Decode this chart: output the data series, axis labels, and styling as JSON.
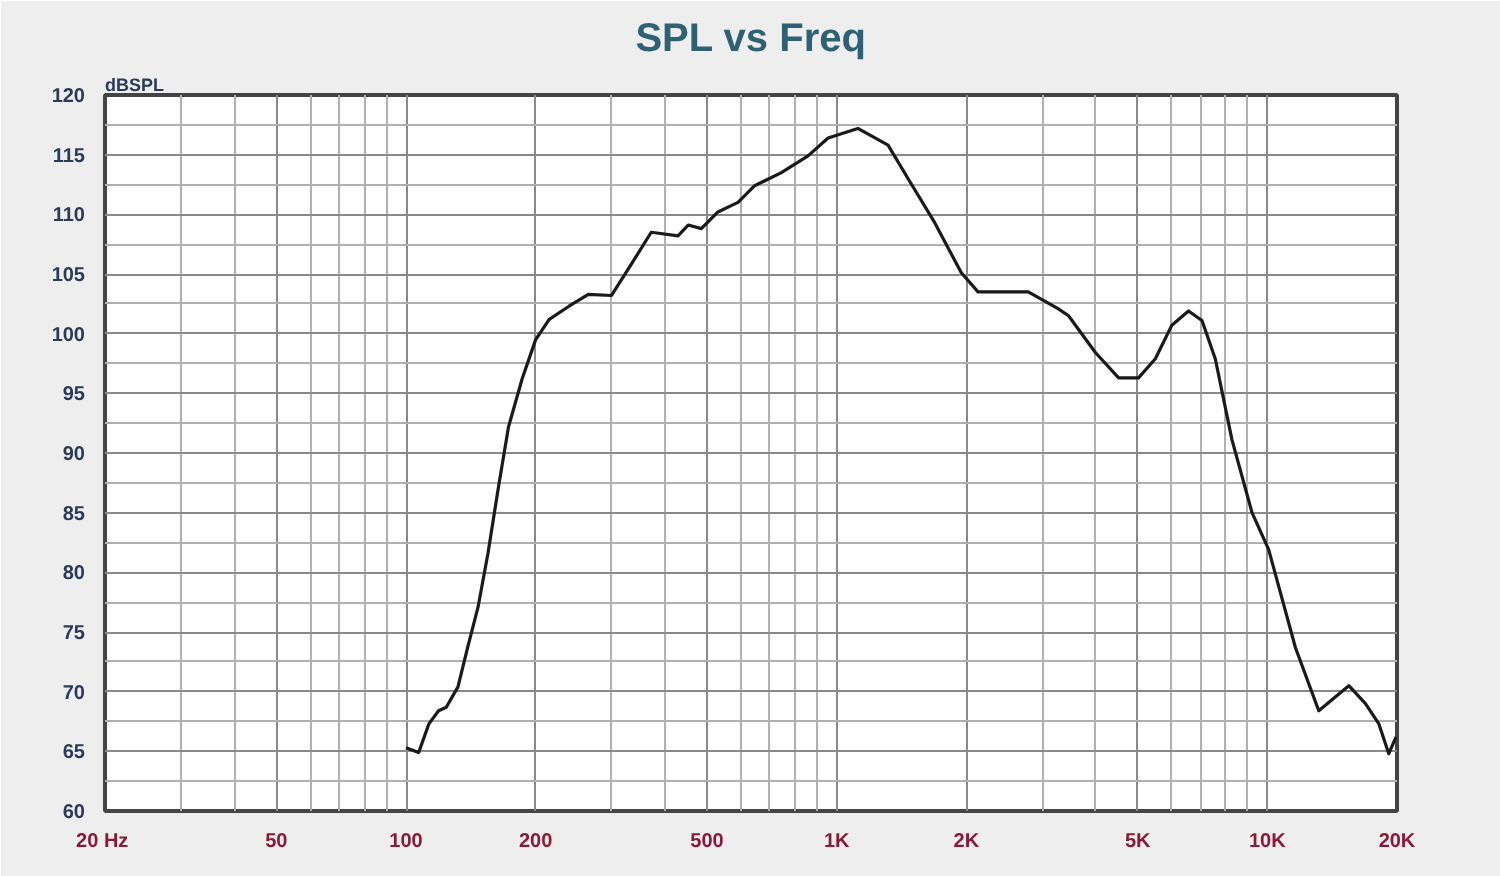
{
  "chart_data": {
    "type": "line",
    "title": "SPL vs Freq",
    "ylabel": "dBSPL",
    "log": "x",
    "xlim": [
      20,
      20000
    ],
    "xticks": [
      {
        "value": 20,
        "label": "20  Hz"
      },
      50,
      100,
      200,
      500,
      {
        "value": 1000,
        "label": "1K"
      },
      {
        "value": 2000,
        "label": "2K"
      },
      {
        "value": 5000,
        "label": "5K"
      },
      {
        "value": 10000,
        "label": "10K"
      },
      {
        "value": 20000,
        "label": "20K"
      }
    ],
    "ylim": [
      60,
      120
    ],
    "yticks": [
      60,
      65,
      70,
      75,
      80,
      85,
      90,
      95,
      100,
      105,
      110,
      115,
      120
    ],
    "grid": true,
    "marker": "none",
    "line_style": "solid",
    "series": [
      {
        "color": "#1a1a1a",
        "x": [
          100,
          107,
          113,
          119,
          124,
          132,
          139,
          147,
          155,
          164,
          173,
          186,
          200,
          215,
          239,
          265,
          300,
          328,
          371,
          428,
          452,
          485,
          530,
          590,
          645,
          744,
          858,
          955,
          1120,
          1316,
          1464,
          1689,
          1947,
          2129,
          2370,
          2785,
          3265,
          3454,
          3992,
          4515,
          5022,
          5494,
          6001,
          6561,
          7050,
          7569,
          8277,
          9213,
          10071,
          11617,
          13164,
          15458,
          16898,
          18155,
          19140,
          19900
        ],
        "values": [
          65.3,
          64.9,
          67.3,
          68.4,
          68.7,
          70.4,
          73.7,
          77.1,
          81.6,
          87.2,
          92.2,
          96.2,
          99.5,
          101.2,
          102.3,
          103.3,
          103.2,
          105.4,
          108.5,
          108.2,
          109.1,
          108.8,
          110.2,
          111.0,
          112.4,
          113.5,
          114.9,
          116.4,
          117.2,
          115.8,
          113.0,
          109.3,
          105.1,
          103.5,
          103.5,
          103.5,
          102.1,
          101.5,
          98.4,
          96.3,
          96.3,
          97.9,
          100.7,
          101.9,
          101.1,
          97.9,
          91.1,
          85.0,
          81.9,
          73.7,
          68.4,
          70.5,
          69.0,
          67.3,
          64.8,
          66.2
        ]
      }
    ]
  }
}
